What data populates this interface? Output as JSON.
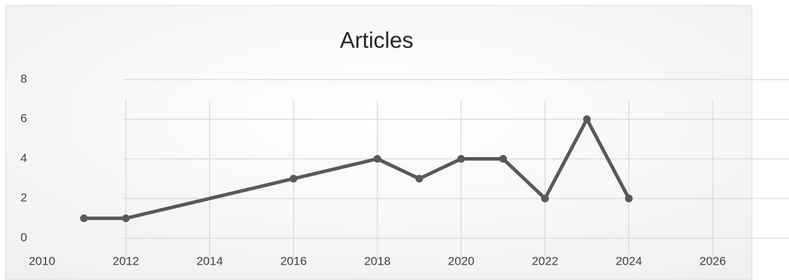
{
  "chart_data": {
    "type": "line",
    "title": "Articles",
    "x": [
      2011,
      2012,
      2016,
      2018,
      2019,
      2020,
      2021,
      2022,
      2023,
      2024
    ],
    "series": [
      {
        "name": "Articles",
        "color": "#595959",
        "values": [
          1,
          1,
          3,
          4,
          3,
          4,
          4,
          2,
          6,
          2
        ]
      }
    ],
    "xlim": [
      2010,
      2026
    ],
    "xticks": [
      2010,
      2012,
      2014,
      2016,
      2018,
      2020,
      2022,
      2024,
      2026
    ],
    "ylim": [
      0,
      8
    ],
    "yticks": [
      0,
      2,
      4,
      6,
      8
    ],
    "grid": true
  }
}
